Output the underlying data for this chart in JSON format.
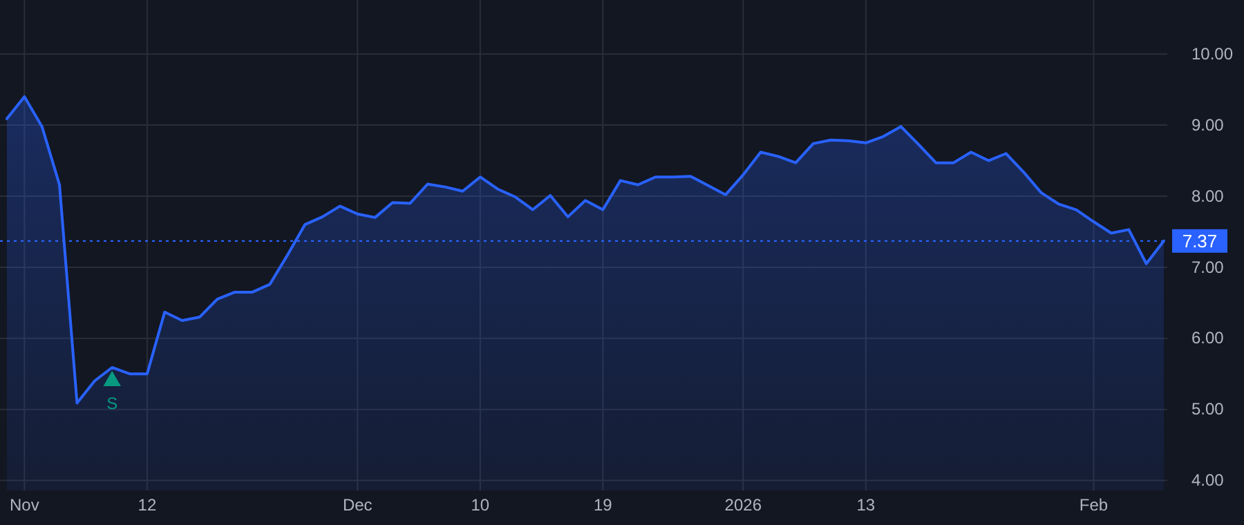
{
  "chart_data": {
    "type": "area",
    "categories": [
      null,
      "Nov",
      null,
      null,
      null,
      null,
      null,
      null,
      "12",
      null,
      null,
      null,
      null,
      null,
      null,
      null,
      null,
      null,
      null,
      null,
      "Dec",
      null,
      null,
      null,
      null,
      null,
      null,
      "10",
      null,
      null,
      null,
      null,
      null,
      null,
      "19",
      null,
      null,
      null,
      null,
      null,
      null,
      null,
      "2026",
      null,
      null,
      null,
      null,
      null,
      null,
      "13",
      null,
      null,
      null,
      null,
      null,
      null,
      null,
      null,
      null,
      null,
      null,
      null,
      "Feb",
      null,
      null,
      null,
      null
    ],
    "series": [
      {
        "color": "#2962ff",
        "values": [
          9.09,
          9.4,
          8.98,
          8.16,
          5.09,
          5.4,
          5.59,
          5.5,
          5.5,
          6.37,
          6.25,
          6.3,
          6.55,
          6.65,
          6.65,
          6.76,
          7.17,
          7.6,
          7.71,
          7.86,
          7.75,
          7.7,
          7.91,
          7.9,
          8.17,
          8.13,
          8.07,
          8.27,
          8.1,
          7.99,
          7.81,
          8.01,
          7.71,
          7.94,
          7.81,
          8.22,
          8.16,
          8.27,
          8.27,
          8.28,
          8.15,
          8.02,
          8.3,
          8.62,
          8.56,
          8.47,
          8.74,
          8.79,
          8.78,
          8.75,
          8.84,
          8.98,
          8.73,
          8.47,
          8.47,
          8.62,
          8.5,
          8.6,
          8.34,
          8.05,
          7.89,
          7.81,
          7.64,
          7.48,
          7.53,
          7.05,
          7.37
        ]
      },
      {
        "type": "scatter",
        "marker": "triangle",
        "color": "#089981",
        "values": [
          null,
          null,
          null,
          null,
          null,
          null,
          5.4,
          null,
          null,
          null,
          null,
          null,
          null,
          null,
          null,
          null,
          null,
          null,
          null,
          null,
          null,
          null,
          null,
          null,
          null,
          null,
          null,
          null,
          null,
          null,
          null,
          null,
          null,
          null,
          null,
          null,
          null,
          null,
          null,
          null,
          null,
          null,
          null,
          null,
          null,
          null,
          null,
          null,
          null,
          null,
          null,
          null,
          null,
          null,
          null,
          null,
          null,
          null,
          null,
          null,
          null,
          null,
          null,
          null,
          null,
          null,
          null
        ]
      }
    ],
    "annotations": [
      "S"
    ],
    "ylim": [
      3.86,
      10.76
    ],
    "yticks": [
      {
        "value": 4,
        "label": "4.00"
      },
      {
        "value": 5,
        "label": "5.00"
      },
      {
        "value": 6,
        "label": "6.00"
      },
      {
        "value": 7,
        "label": "7.00"
      },
      {
        "value": 8,
        "label": "8.00"
      },
      {
        "value": 9,
        "label": "9.00"
      },
      {
        "value": 10,
        "label": "10.00"
      }
    ],
    "ref_lines": [
      {
        "axis": "y",
        "value": 7.37,
        "label": "7.37",
        "color": "#2962ff",
        "line_style": "dotted"
      }
    ],
    "grid": true,
    "line_style": "solid"
  }
}
